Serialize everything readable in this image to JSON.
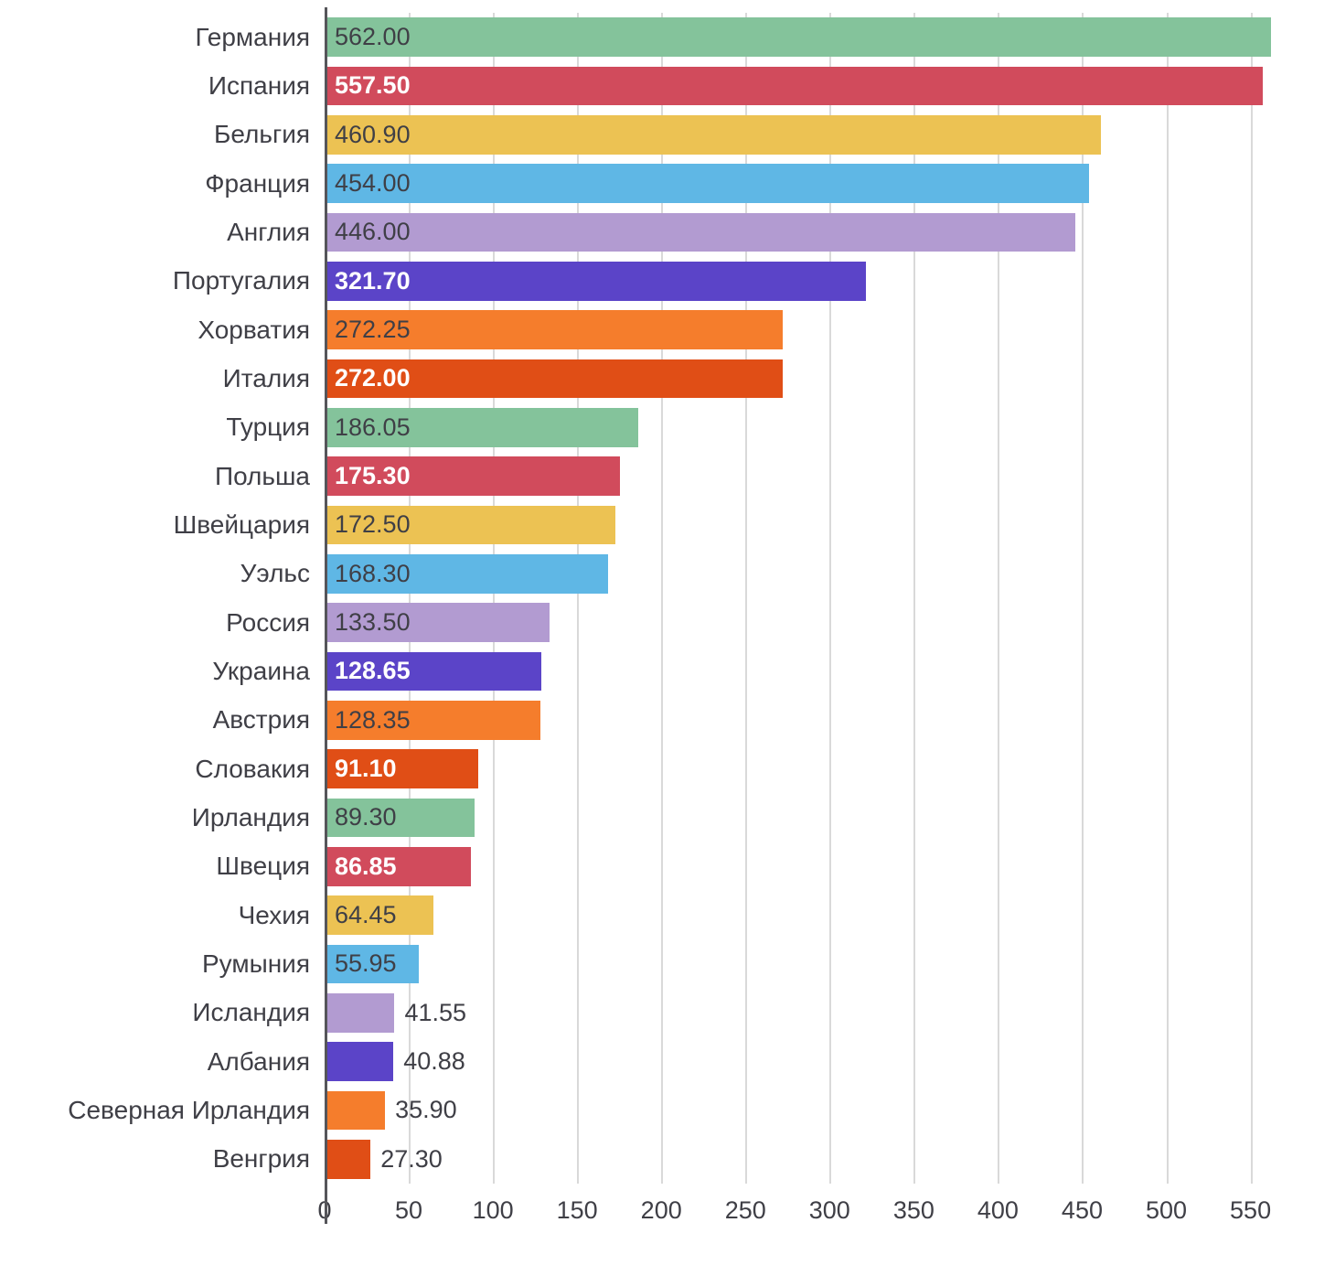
{
  "chart_data": {
    "type": "bar",
    "orientation": "horizontal",
    "title": "",
    "xlabel": "",
    "ylabel": "",
    "grid": true,
    "xlim": [
      0,
      585
    ],
    "x_ticks": [
      0,
      50,
      100,
      150,
      200,
      250,
      300,
      350,
      400,
      450,
      500,
      550
    ],
    "categories": [
      "Германия",
      "Испания",
      "Бельгия",
      "Франция",
      "Англия",
      "Португалия",
      "Хорватия",
      "Италия",
      "Турция",
      "Польша",
      "Швейцария",
      "Уэльс",
      "Россия",
      "Украина",
      "Австрия",
      "Словакия",
      "Ирландия",
      "Швеция",
      "Чехия",
      "Румыния",
      "Исландия",
      "Албания",
      "Северная Ирландия",
      "Венгрия"
    ],
    "values": [
      562.0,
      557.5,
      460.9,
      454.0,
      446.0,
      321.7,
      272.25,
      272.0,
      186.05,
      175.3,
      172.5,
      168.3,
      133.5,
      128.65,
      128.35,
      91.1,
      89.3,
      86.85,
      64.45,
      55.95,
      41.55,
      40.88,
      35.9,
      27.3
    ],
    "value_labels": [
      "562.00",
      "557.50",
      "460.90",
      "454.00",
      "446.00",
      "321.70",
      "272.25",
      "272.00",
      "186.05",
      "175.30",
      "172.50",
      "168.30",
      "133.50",
      "128.65",
      "128.35",
      "91.10",
      "89.30",
      "86.85",
      "64.45",
      "55.95",
      "41.55",
      "40.88",
      "35.90",
      "27.30"
    ],
    "palette": [
      {
        "name": "green",
        "color": "#84C39B",
        "text": "#3f3f46"
      },
      {
        "name": "red",
        "color": "#D14B5C",
        "text": "#ffffff"
      },
      {
        "name": "yellow",
        "color": "#ECC253",
        "text": "#3f3f46"
      },
      {
        "name": "blue",
        "color": "#5FB7E5",
        "text": "#3f3f46"
      },
      {
        "name": "purple",
        "color": "#B29BD1",
        "text": "#3f3f46"
      },
      {
        "name": "violet",
        "color": "#5B44C8",
        "text": "#ffffff"
      },
      {
        "name": "orange",
        "color": "#F57D2C",
        "text": "#3f3f46"
      },
      {
        "name": "dark-orange",
        "color": "#E04E16",
        "text": "#ffffff"
      }
    ],
    "axis_color": "#55555a",
    "gridline_color": "#d9d9d9",
    "label_color": "#3f3f46",
    "inside_label_min_value": 50
  }
}
